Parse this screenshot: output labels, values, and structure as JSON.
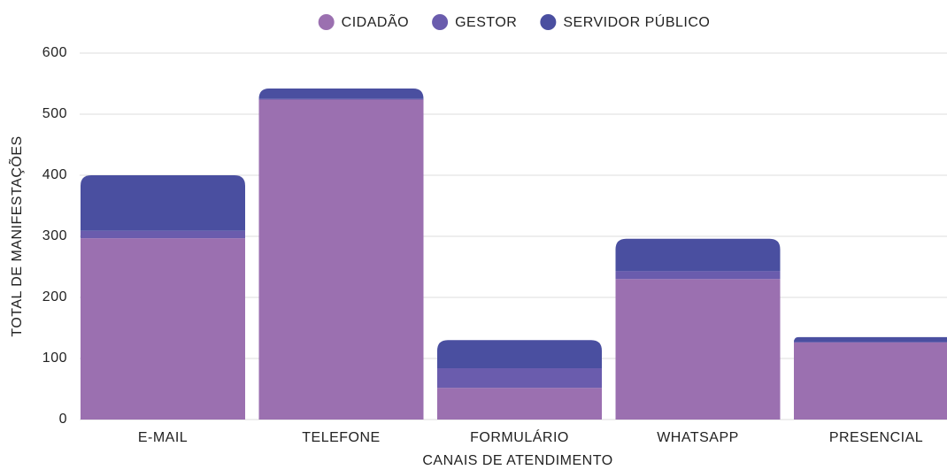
{
  "chart_data": {
    "type": "stacked_bar",
    "x_label": "CANAIS DE ATENDIMENTO",
    "y_label": "TOTAL DE MANIFESTAÇÕES",
    "categories": [
      "E-MAIL",
      "TELEFONE",
      "FORMULÁRIO",
      "WHATSAPP",
      "PRESENCIAL"
    ],
    "series": [
      {
        "name": "CIDADÃO",
        "color": "#9b70b0",
        "values": [
          297,
          524,
          52,
          230,
          126
        ]
      },
      {
        "name": "GESTOR",
        "color": "#6a5cad",
        "values": [
          12,
          1,
          32,
          13,
          1
        ]
      },
      {
        "name": "SERVIDOR PÚBLICO",
        "color": "#4a4fa0",
        "values": [
          91,
          17,
          46,
          53,
          8
        ]
      }
    ],
    "ylim": [
      0,
      600
    ],
    "yticks": [
      0,
      100,
      200,
      300,
      400,
      500,
      600
    ],
    "grid": true,
    "legend": "top"
  }
}
